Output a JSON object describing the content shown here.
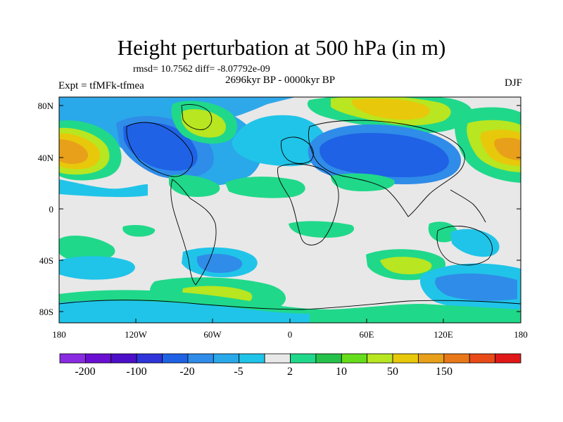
{
  "header": {
    "title": "Height perturbation at 500 hPa (in m)",
    "stats": "rmsd= 10.7562 diff= -8.07792e-09",
    "period": "2696kyr BP - 0000kyr BP",
    "experiment": "Expt = tfMFk-tfmea",
    "season": "DJF"
  },
  "axes": {
    "lat_ticks": [
      "80N",
      "40N",
      "0",
      "40S",
      "80S"
    ],
    "lon_ticks": [
      "180",
      "120W",
      "60W",
      "0",
      "60E",
      "120E",
      "180"
    ]
  },
  "colorbar": {
    "labels": [
      "-200",
      "-100",
      "-20",
      "-5",
      "2",
      "10",
      "50",
      "150"
    ],
    "colors": [
      "#8a2be2",
      "#6a0fd2",
      "#4b0fc8",
      "#2f35d9",
      "#1f62e5",
      "#2f8ce8",
      "#29a8ea",
      "#20c4e8",
      "#e8e8e8",
      "#20d88a",
      "#26c14a",
      "#66dd1a",
      "#b8e620",
      "#e8c80a",
      "#e8a01a",
      "#e87818",
      "#e84a18",
      "#e01818"
    ]
  }
}
